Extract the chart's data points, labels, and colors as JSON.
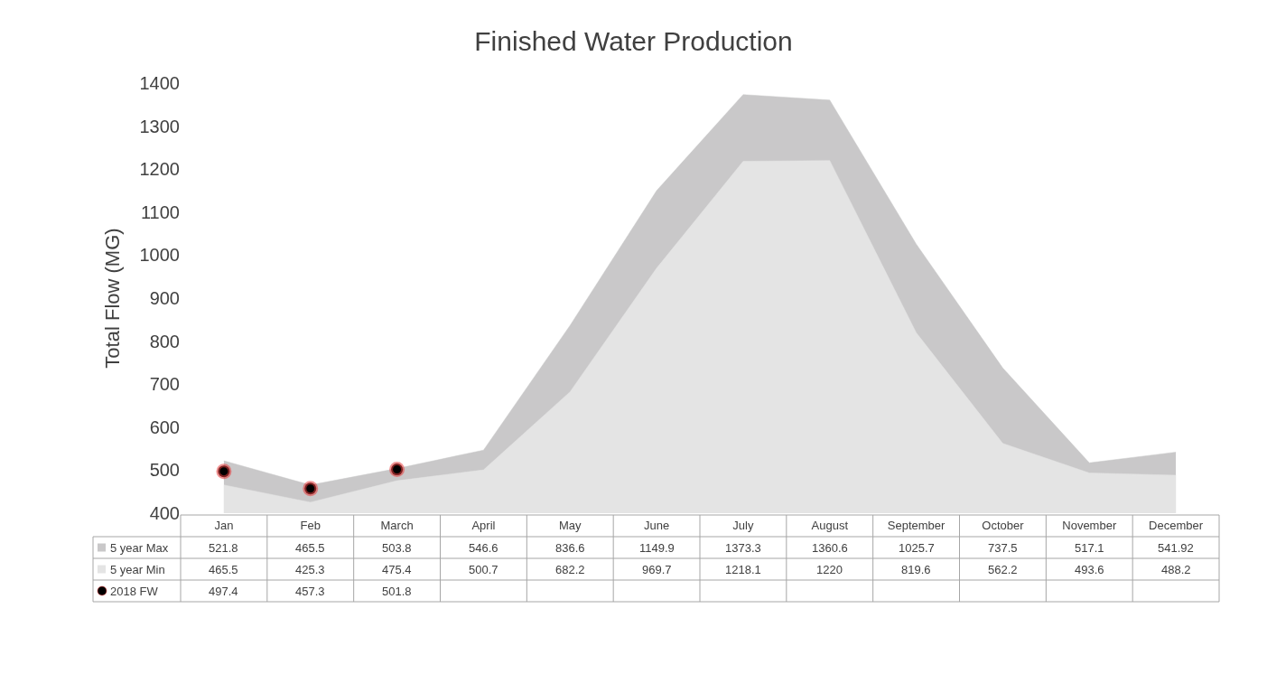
{
  "chart_data": {
    "type": "area",
    "title": "Finished Water Production",
    "ylabel": "Total Flow (MG)",
    "categories": [
      "Jan",
      "Feb",
      "March",
      "April",
      "May",
      "June",
      "July",
      "August",
      "September",
      "October",
      "November",
      "December"
    ],
    "series": [
      {
        "name": "5 year Max",
        "color": "#c9c8c9",
        "values": [
          521.8,
          465.5,
          503.8,
          546.6,
          836.6,
          1149.9,
          1373.3,
          1360.6,
          1025.7,
          737.5,
          517.1,
          541.92
        ]
      },
      {
        "name": "5 year Min",
        "color": "#e4e4e4",
        "values": [
          465.5,
          425.3,
          475.4,
          500.7,
          682.2,
          969.7,
          1218.1,
          1220,
          819.6,
          562.2,
          493.6,
          488.2
        ]
      },
      {
        "name": "2018 FW",
        "type": "scatter",
        "marker": "circle",
        "color": "#000000",
        "values": [
          497.4,
          457.3,
          501.8,
          null,
          null,
          null,
          null,
          null,
          null,
          null,
          null,
          null
        ]
      }
    ],
    "ylim": [
      400,
      1400
    ],
    "yticks": [
      400,
      500,
      600,
      700,
      800,
      900,
      1000,
      1100,
      1200,
      1300,
      1400
    ],
    "grid": false,
    "legend": "bottom",
    "data_labels": true
  }
}
